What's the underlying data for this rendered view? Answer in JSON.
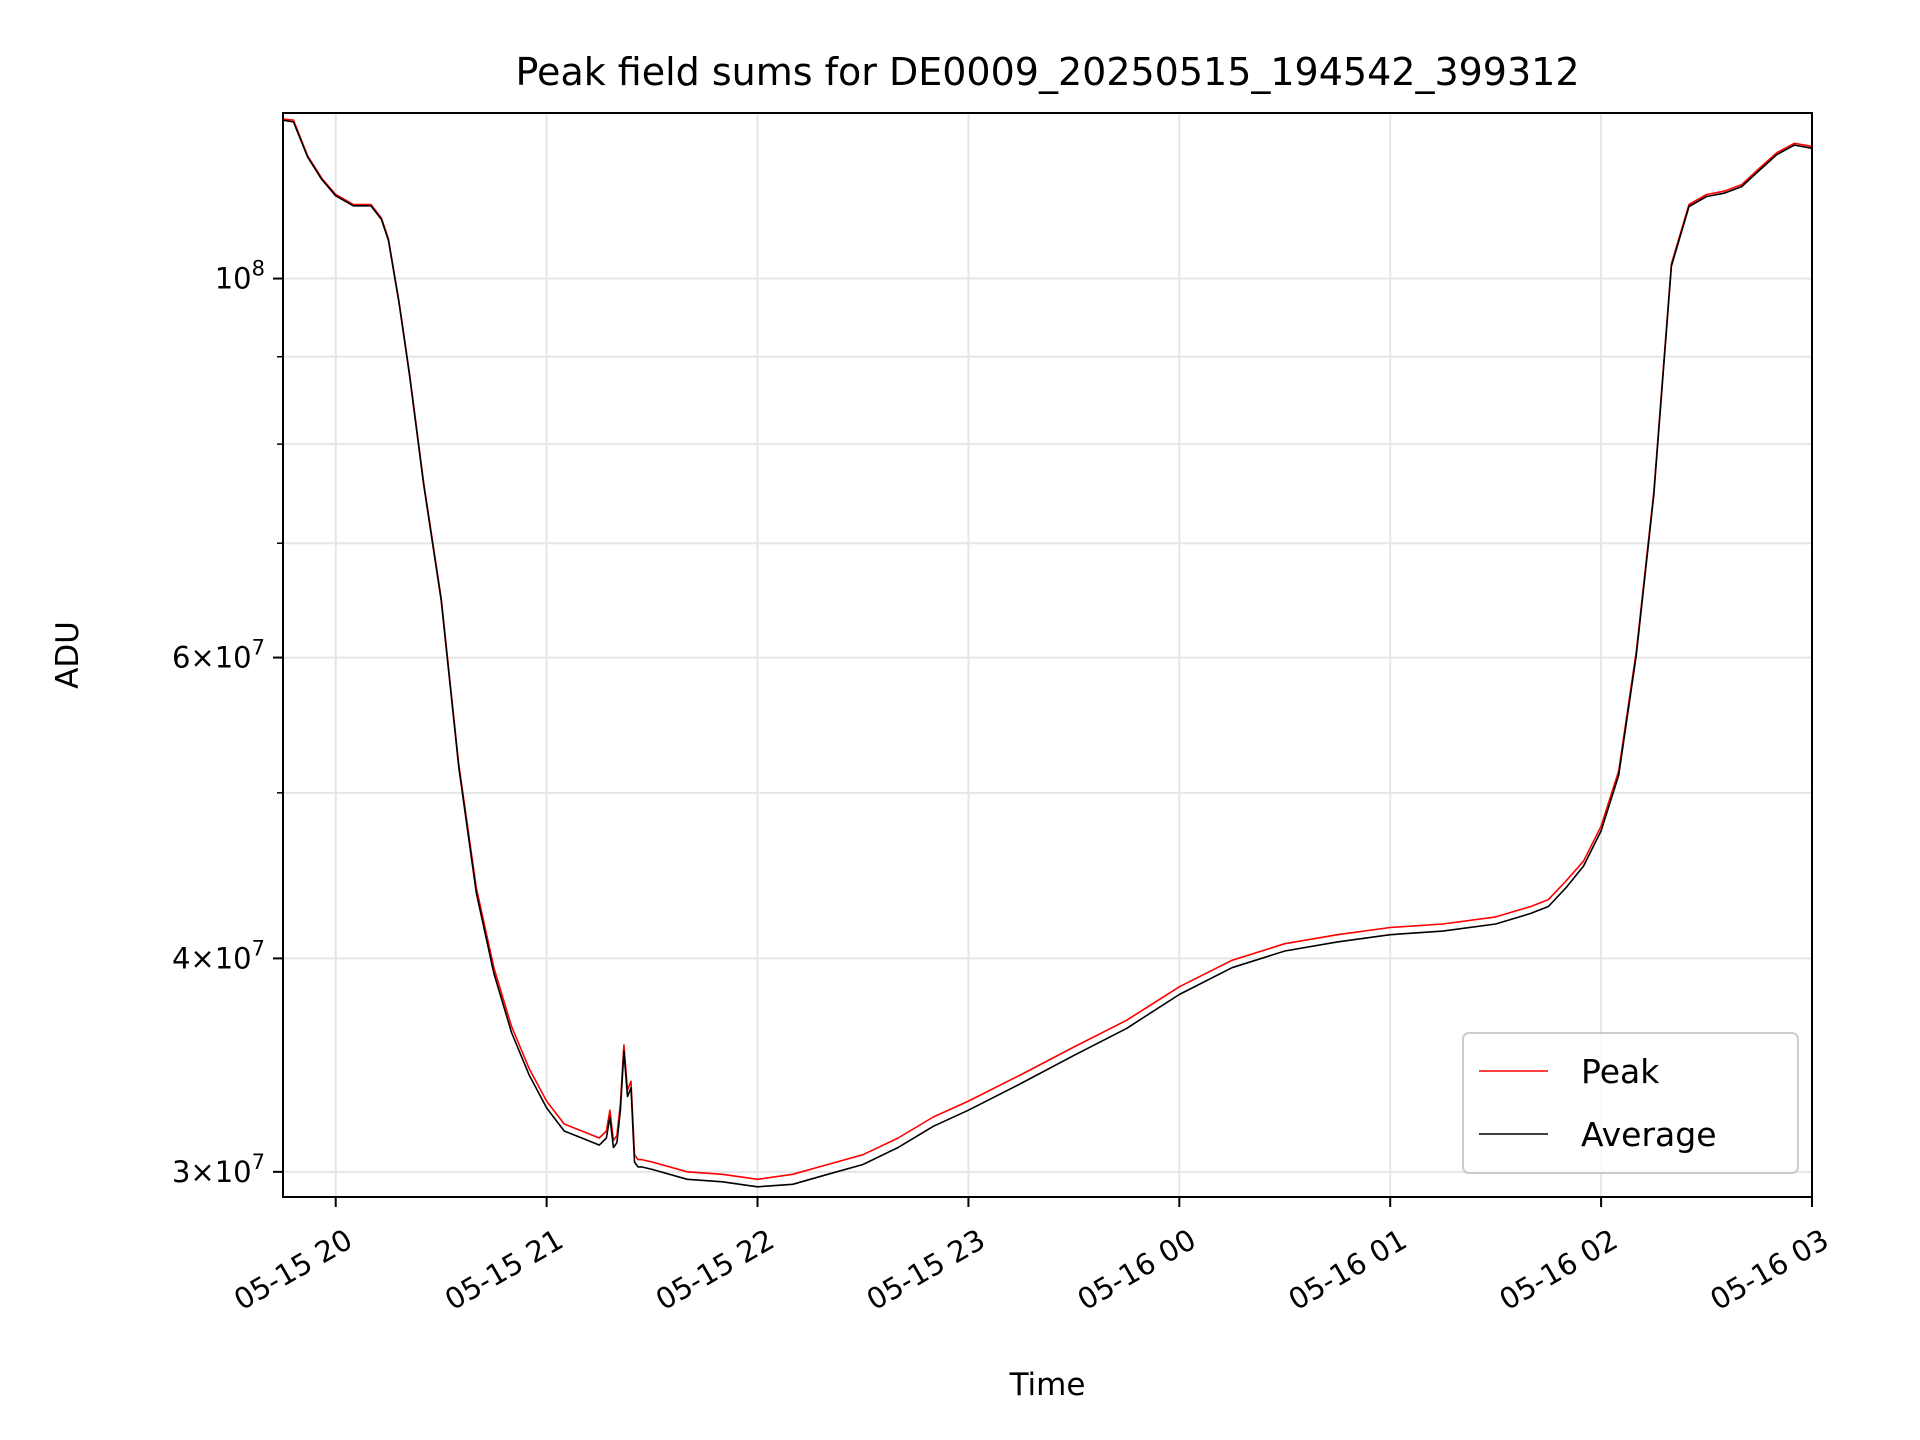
{
  "chart_data": {
    "type": "line",
    "title": "Peak field sums for DE0009_20250515_194542_399312",
    "xlabel": "Time",
    "ylabel": "ADU",
    "x_scale": "time",
    "y_scale": "log",
    "xlim": [
      "2025-05-15 19:45",
      "2025-05-16 03:00"
    ],
    "ylim": [
      29000000,
      125000000
    ],
    "grid": true,
    "legend_position": "lower-right",
    "x_ticks": [
      "05-15 20",
      "05-15 21",
      "05-15 22",
      "05-15 23",
      "05-16 00",
      "05-16 01",
      "05-16 02",
      "05-16 03"
    ],
    "y_tick_labels": [
      {
        "value": 30000000,
        "mantissa": "3",
        "exp": "7"
      },
      {
        "value": 40000000,
        "mantissa": "4",
        "exp": "7"
      },
      {
        "value": 60000000,
        "mantissa": "6",
        "exp": "7"
      },
      {
        "value": 100000000,
        "mantissa": "",
        "exp": "8"
      }
    ],
    "y_minor_ticks": [
      50000000,
      70000000,
      80000000,
      90000000
    ],
    "x": [
      "2025-05-15 19:45",
      "2025-05-15 19:48",
      "2025-05-15 19:52",
      "2025-05-15 19:56",
      "2025-05-15 20:00",
      "2025-05-15 20:05",
      "2025-05-15 20:10",
      "2025-05-15 20:13",
      "2025-05-15 20:15",
      "2025-05-15 20:18",
      "2025-05-15 20:21",
      "2025-05-15 20:25",
      "2025-05-15 20:30",
      "2025-05-15 20:35",
      "2025-05-15 20:40",
      "2025-05-15 20:45",
      "2025-05-15 20:50",
      "2025-05-15 20:55",
      "2025-05-15 21:00",
      "2025-05-15 21:05",
      "2025-05-15 21:10",
      "2025-05-15 21:15",
      "2025-05-15 21:17",
      "2025-05-15 21:18",
      "2025-05-15 21:19",
      "2025-05-15 21:20",
      "2025-05-15 21:21",
      "2025-05-15 21:22",
      "2025-05-15 21:23",
      "2025-05-15 21:24",
      "2025-05-15 21:25",
      "2025-05-15 21:26",
      "2025-05-15 21:27",
      "2025-05-15 21:30",
      "2025-05-15 21:40",
      "2025-05-15 21:50",
      "2025-05-15 22:00",
      "2025-05-15 22:10",
      "2025-05-15 22:20",
      "2025-05-15 22:30",
      "2025-05-15 22:40",
      "2025-05-15 22:50",
      "2025-05-15 23:00",
      "2025-05-15 23:15",
      "2025-05-15 23:30",
      "2025-05-15 23:45",
      "2025-05-16 00:00",
      "2025-05-16 00:15",
      "2025-05-16 00:30",
      "2025-05-16 00:45",
      "2025-05-16 01:00",
      "2025-05-16 01:15",
      "2025-05-16 01:30",
      "2025-05-16 01:40",
      "2025-05-16 01:45",
      "2025-05-16 01:50",
      "2025-05-16 01:55",
      "2025-05-16 02:00",
      "2025-05-16 02:05",
      "2025-05-16 02:10",
      "2025-05-16 02:15",
      "2025-05-16 02:20",
      "2025-05-16 02:25",
      "2025-05-16 02:30",
      "2025-05-16 02:35",
      "2025-05-16 02:40",
      "2025-05-16 02:45",
      "2025-05-16 02:50",
      "2025-05-16 02:55",
      "2025-05-16 03:00"
    ],
    "series": [
      {
        "name": "Peak",
        "color": "#ff0000",
        "values": [
          124000000,
          123800000,
          118000000,
          114500000,
          112000000,
          110500000,
          110500000,
          108500000,
          105500000,
          97000000,
          88000000,
          76000000,
          65000000,
          52000000,
          44000000,
          39500000,
          36500000,
          34500000,
          33000000,
          32000000,
          31700000,
          31400000,
          31700000,
          32600000,
          31300000,
          31500000,
          32900000,
          35600000,
          33500000,
          33900000,
          30700000,
          30500000,
          30500000,
          30400000,
          30000000,
          29900000,
          29700000,
          29900000,
          30300000,
          30700000,
          31400000,
          32300000,
          33000000,
          34200000,
          35500000,
          36800000,
          38500000,
          39900000,
          40800000,
          41300000,
          41700000,
          41900000,
          42300000,
          42900000,
          43300000,
          44400000,
          45600000,
          47800000,
          51500000,
          60500000,
          75000000,
          102000000,
          110500000,
          112000000,
          112500000,
          113500000,
          116000000,
          118500000,
          120000000,
          119500000
        ]
      },
      {
        "name": "Average",
        "color": "#000000",
        "values": [
          123800000,
          123500000,
          117800000,
          114300000,
          111800000,
          110300000,
          110300000,
          108300000,
          105300000,
          96800000,
          87800000,
          75800000,
          64800000,
          51800000,
          43700000,
          39200000,
          36200000,
          34200000,
          32700000,
          31700000,
          31400000,
          31100000,
          31400000,
          32300000,
          31000000,
          31200000,
          32600000,
          35300000,
          33200000,
          33600000,
          30400000,
          30200000,
          30200000,
          30100000,
          29700000,
          29600000,
          29400000,
          29500000,
          29900000,
          30300000,
          31000000,
          31900000,
          32600000,
          33800000,
          35100000,
          36400000,
          38100000,
          39500000,
          40400000,
          40900000,
          41300000,
          41500000,
          41900000,
          42500000,
          42900000,
          44000000,
          45300000,
          47500000,
          51200000,
          60200000,
          74700000,
          101700000,
          110200000,
          111700000,
          112200000,
          113200000,
          115700000,
          118200000,
          119700000,
          119200000
        ]
      }
    ]
  }
}
